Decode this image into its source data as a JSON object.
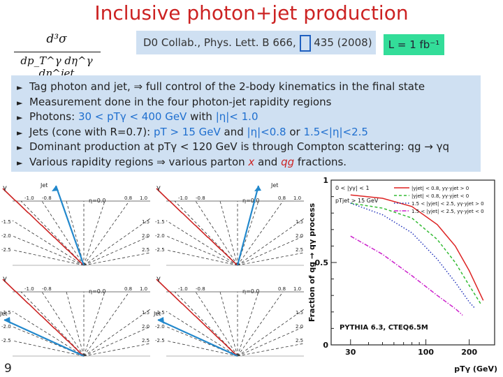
{
  "slide": {
    "title": "Inclusive photon+jet production",
    "page_number": "9"
  },
  "formula": {
    "numerator": "d³σ",
    "denominator": "dp_T^γ dη^γ dη^jet"
  },
  "reference": {
    "text_before": "D0 Collab., Phys. Lett. B 666, ",
    "text_after": " 435 (2008)"
  },
  "luminosity": {
    "label": "L = 1 fb⁻¹"
  },
  "bullets": {
    "b1": "Tag photon and jet, ⇒ full control of the 2-body kinematics in the final state",
    "b2": "Measurement done in the four photon-jet rapidity regions",
    "b3_pre": "Photons: ",
    "b3_pt": "30 < pTγ < 400  GeV",
    "b3_mid": " with ",
    "b3_eta": "|η|< 1.0",
    "b4_pre": "Jets (cone with R=0.7): ",
    "b4_pt": "pT > 15 GeV",
    "b4_mid": " and ",
    "b4_eta1": "|η|<0.8",
    "b4_or": " or ",
    "b4_eta2": "1.5<|η|<2.5",
    "b5": "Dominant production at pTγ < 120 GeV is through Compton scattering: qg → γq",
    "b6_pre": "Various rapidity regions  ⇒  various  parton  ",
    "b6_x": "x",
    "b6_mid": "  and  ",
    "b6_qg": "qg",
    "b6_post": "  fractions."
  },
  "diagrams": {
    "gamma": "γ",
    "jet": "Jet",
    "eta_label": "η=0.0",
    "ticks_top": [
      "-1.0",
      "-0.8",
      "0.8",
      "1.0"
    ],
    "ticks_side": [
      "-1.5",
      "-2.0",
      "-2.5"
    ],
    "ticks_right": [
      "1.5",
      "2.0",
      "2.5"
    ]
  },
  "chart_data": {
    "type": "line",
    "title": "",
    "xlabel": "pTγ (GeV)",
    "ylabel": "Fraction of qg → qγ process",
    "xscale": "log",
    "xlim": [
      22,
      300
    ],
    "ylim": [
      0,
      1
    ],
    "xticks": [
      "30",
      "100",
      "200"
    ],
    "yticks": [
      "0",
      "0.5",
      "1"
    ],
    "legend_header": [
      "0 < |yγ| < 1",
      "pTjet > 15 GeV"
    ],
    "annotation": "PYTHIA 6.3, CTEQ6.5M",
    "series": [
      {
        "name": "|yjet| < 0.8,  yγ·yjet > 0",
        "color": "#dd2222",
        "dash": "",
        "x": [
          30,
          50,
          80,
          120,
          160,
          200,
          250
        ],
        "y": [
          0.91,
          0.89,
          0.84,
          0.73,
          0.6,
          0.45,
          0.27
        ]
      },
      {
        "name": "|yjet| < 0.8,  yγ·yjet < 0",
        "color": "#33bb33",
        "dash": "4,3",
        "x": [
          30,
          50,
          80,
          120,
          160,
          200,
          240
        ],
        "y": [
          0.86,
          0.83,
          0.77,
          0.64,
          0.5,
          0.36,
          0.25
        ]
      },
      {
        "name": "1.5 < |yjet| < 2.5,  yγ·yjet > 0",
        "color": "#2233bb",
        "dash": "1.5,2.5",
        "x": [
          30,
          50,
          80,
          120,
          160,
          200,
          220
        ],
        "y": [
          0.86,
          0.79,
          0.68,
          0.52,
          0.38,
          0.26,
          0.22
        ]
      },
      {
        "name": "1.5 < |yjet| < 2.5,  yγ·yjet < 0",
        "color": "#cc22cc",
        "dash": "6,2,1.5,2",
        "x": [
          30,
          50,
          80,
          120,
          160,
          180
        ],
        "y": [
          0.66,
          0.55,
          0.42,
          0.3,
          0.22,
          0.18
        ]
      }
    ]
  }
}
